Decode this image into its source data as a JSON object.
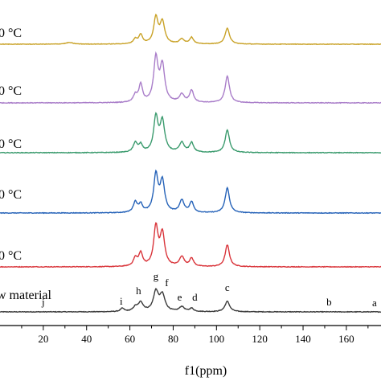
{
  "chart_data": {
    "type": "line",
    "title": "",
    "xlabel": "f1(ppm)",
    "ylabel": "",
    "xlim": [
      0,
      176
    ],
    "xticks": [
      20,
      40,
      60,
      80,
      100,
      120,
      140,
      160
    ],
    "grid": false,
    "legend": "none",
    "series": [
      {
        "name": "raw material",
        "label": "w material",
        "color": "#3a3a3a",
        "noise": 0.8,
        "baseline_tilt": 0.0,
        "peaks": [
          {
            "x": 56.5,
            "h": 4,
            "w": 1.0
          },
          {
            "x": 62.5,
            "h": 5,
            "w": 1.2
          },
          {
            "x": 65,
            "h": 11,
            "w": 1.4
          },
          {
            "x": 72,
            "h": 24,
            "w": 1.4
          },
          {
            "x": 75,
            "h": 20,
            "w": 1.5
          },
          {
            "x": 84,
            "h": 6,
            "w": 1.4
          },
          {
            "x": 88.5,
            "h": 4,
            "w": 1.1
          },
          {
            "x": 105,
            "h": 13,
            "w": 1.3
          }
        ]
      },
      {
        "name": "series 2",
        "label": "0 °C",
        "color": "#d9343a",
        "noise": 0.8,
        "baseline_tilt": 0.0,
        "peaks": [
          {
            "x": 62.5,
            "h": 10,
            "w": 1.1
          },
          {
            "x": 65,
            "h": 16,
            "w": 1.1
          },
          {
            "x": 72,
            "h": 48,
            "w": 1.2
          },
          {
            "x": 75,
            "h": 40,
            "w": 1.3
          },
          {
            "x": 84,
            "h": 12,
            "w": 1.3
          },
          {
            "x": 88.5,
            "h": 10,
            "w": 1.1
          },
          {
            "x": 105,
            "h": 27,
            "w": 1.2
          }
        ]
      },
      {
        "name": "series 3",
        "label": "0 °C",
        "color": "#2562b8",
        "noise": 0.8,
        "baseline_tilt": 0.0,
        "peaks": [
          {
            "x": 62.5,
            "h": 13,
            "w": 1.1
          },
          {
            "x": 65,
            "h": 10,
            "w": 1.0
          },
          {
            "x": 72,
            "h": 46,
            "w": 1.2
          },
          {
            "x": 75,
            "h": 38,
            "w": 1.3
          },
          {
            "x": 84,
            "h": 15,
            "w": 1.3
          },
          {
            "x": 88.5,
            "h": 13,
            "w": 1.1
          },
          {
            "x": 105,
            "h": 31,
            "w": 1.2
          }
        ]
      },
      {
        "name": "series 4",
        "label": "0 °C",
        "color": "#3b9b6e",
        "noise": 0.8,
        "baseline_tilt": 0.0,
        "peaks": [
          {
            "x": 62.5,
            "h": 12,
            "w": 1.1
          },
          {
            "x": 65,
            "h": 9,
            "w": 1.0
          },
          {
            "x": 72,
            "h": 43,
            "w": 1.2
          },
          {
            "x": 75,
            "h": 38,
            "w": 1.3
          },
          {
            "x": 84,
            "h": 12,
            "w": 1.3
          },
          {
            "x": 88.5,
            "h": 12,
            "w": 1.1
          },
          {
            "x": 105,
            "h": 28,
            "w": 1.2
          }
        ]
      },
      {
        "name": "series 5",
        "label": "0 °C",
        "color": "#a97dc9",
        "noise": 0.8,
        "baseline_tilt": 0.0,
        "peaks": [
          {
            "x": 62.5,
            "h": 9,
            "w": 1.1
          },
          {
            "x": 65,
            "h": 22,
            "w": 1.0
          },
          {
            "x": 72,
            "h": 54,
            "w": 1.2
          },
          {
            "x": 75,
            "h": 45,
            "w": 1.3
          },
          {
            "x": 84,
            "h": 10,
            "w": 1.3
          },
          {
            "x": 88.5,
            "h": 15,
            "w": 1.1
          },
          {
            "x": 105,
            "h": 33,
            "w": 1.2
          }
        ]
      },
      {
        "name": "series 6",
        "label": "0 °C",
        "color": "#c9a227",
        "noise": 0.6,
        "baseline_tilt": 0.0,
        "peaks": [
          {
            "x": 32,
            "h": 2,
            "w": 2.0
          },
          {
            "x": 62.5,
            "h": 6,
            "w": 1.1
          },
          {
            "x": 65,
            "h": 11,
            "w": 1.0
          },
          {
            "x": 72,
            "h": 32,
            "w": 1.2
          },
          {
            "x": 75,
            "h": 27,
            "w": 1.3
          },
          {
            "x": 84,
            "h": 6,
            "w": 1.3
          },
          {
            "x": 88.5,
            "h": 8,
            "w": 1.1
          },
          {
            "x": 105,
            "h": 20,
            "w": 1.2
          }
        ]
      }
    ],
    "peak_labels": [
      {
        "text": "a",
        "x": 173
      },
      {
        "text": "b",
        "x": 152
      },
      {
        "text": "c",
        "x": 105
      },
      {
        "text": "d",
        "x": 90
      },
      {
        "text": "e",
        "x": 83
      },
      {
        "text": "f",
        "x": 77
      },
      {
        "text": "g",
        "x": 72
      },
      {
        "text": "h",
        "x": 64
      },
      {
        "text": "i",
        "x": 56
      },
      {
        "text": "j",
        "x": 20
      }
    ]
  }
}
